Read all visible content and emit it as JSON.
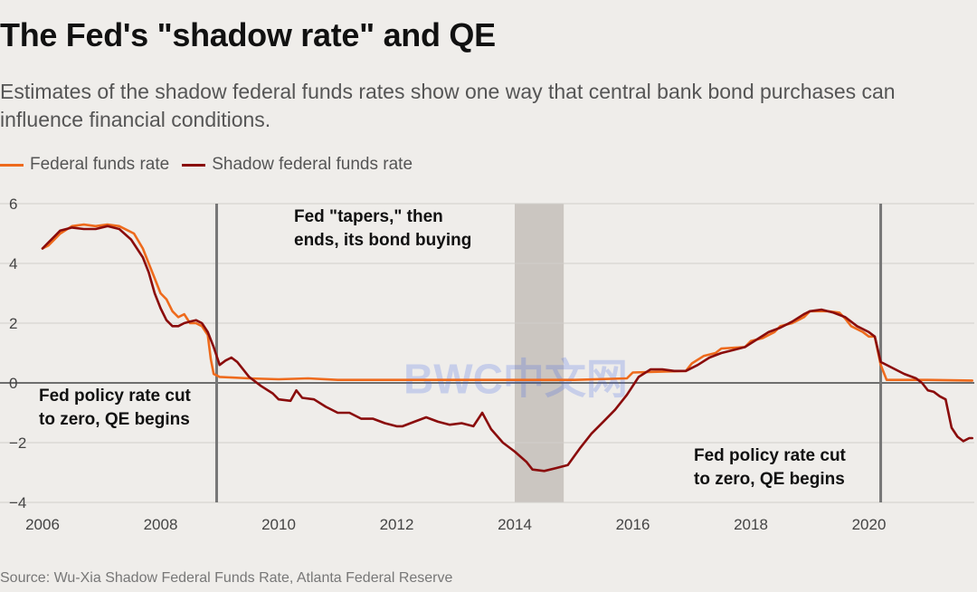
{
  "title": "The Fed's \"shadow rate\" and QE",
  "subtitle": "Estimates of the shadow federal funds rates show one way that central bank bond purchases can influence financial conditions.",
  "source": "Source: Wu-Xia Shadow Federal Funds Rate, Atlanta Federal Reserve",
  "watermark": "BWC中文网",
  "chart_data": {
    "type": "line",
    "title": "The Fed's \"shadow rate\" and QE",
    "xlabel": "",
    "ylabel": "",
    "xlim": [
      2006,
      2021.8
    ],
    "ylim": [
      -4,
      6
    ],
    "x_ticks": [
      2006,
      2008,
      2010,
      2012,
      2014,
      2016,
      2018,
      2020
    ],
    "y_ticks": [
      -4,
      -2,
      0,
      2,
      4,
      6
    ],
    "y_tick_labels": [
      "−4",
      "−2",
      "0",
      "2",
      "4",
      "6"
    ],
    "grid": "horizontal",
    "legend_position": "top-left",
    "colors": {
      "funds": "#ee6a1c",
      "shadow": "#8a0c0c",
      "vline": "#777777",
      "shade": "#cbc6c1",
      "watermark": "#3f63e6"
    },
    "vertical_lines": [
      2008.95,
      2020.2
    ],
    "shaded_region": [
      2014.0,
      2014.83
    ],
    "annotations": [
      {
        "lines": [
          "Fed policy rate cut",
          "to zero, QE begins"
        ],
        "x": 2006,
        "y": -0.6
      },
      {
        "lines": [
          "Fed \"tapers,\" then",
          "ends, its bond buying"
        ],
        "x": 2008.95,
        "y": 5.4
      },
      {
        "lines": [
          "Fed policy rate cut",
          "to zero, QE begins"
        ],
        "x": 2019.05,
        "y": -2.6
      }
    ],
    "series": [
      {
        "name": "Federal funds rate",
        "color": "#ee6a1c",
        "x": [
          2006.0,
          2006.1,
          2006.2,
          2006.3,
          2006.5,
          2006.7,
          2006.9,
          2007.1,
          2007.3,
          2007.55,
          2007.7,
          2007.8,
          2007.9,
          2008.0,
          2008.1,
          2008.2,
          2008.3,
          2008.4,
          2008.5,
          2008.6,
          2008.7,
          2008.8,
          2008.85,
          2008.9,
          2009.0,
          2009.5,
          2010.0,
          2010.5,
          2011.0,
          2011.5,
          2012.0,
          2013.0,
          2014.0,
          2015.0,
          2015.9,
          2016.0,
          2016.9,
          2017.0,
          2017.2,
          2017.4,
          2017.5,
          2017.9,
          2018.0,
          2018.2,
          2018.4,
          2018.5,
          2018.7,
          2018.9,
          2019.0,
          2019.3,
          2019.5,
          2019.6,
          2019.7,
          2019.9,
          2020.0,
          2020.1,
          2020.2,
          2020.3,
          2021.0,
          2021.75
        ],
        "y": [
          4.5,
          4.6,
          4.8,
          5.0,
          5.25,
          5.3,
          5.25,
          5.3,
          5.25,
          5.0,
          4.5,
          4.0,
          3.5,
          3.0,
          2.8,
          2.4,
          2.2,
          2.3,
          2.0,
          2.0,
          1.9,
          1.6,
          0.8,
          0.3,
          0.2,
          0.15,
          0.12,
          0.15,
          0.1,
          0.1,
          0.1,
          0.1,
          0.1,
          0.1,
          0.15,
          0.35,
          0.4,
          0.65,
          0.9,
          1.0,
          1.15,
          1.2,
          1.4,
          1.5,
          1.7,
          1.9,
          2.0,
          2.2,
          2.4,
          2.4,
          2.35,
          2.15,
          1.9,
          1.7,
          1.55,
          1.55,
          0.6,
          0.1,
          0.1,
          0.08
        ]
      },
      {
        "name": "Shadow federal funds rate",
        "color": "#8a0c0c",
        "x": [
          2006.0,
          2006.1,
          2006.2,
          2006.3,
          2006.5,
          2006.7,
          2006.9,
          2007.1,
          2007.3,
          2007.5,
          2007.6,
          2007.7,
          2007.8,
          2007.9,
          2008.0,
          2008.1,
          2008.2,
          2008.3,
          2008.4,
          2008.5,
          2008.6,
          2008.7,
          2008.8,
          2008.9,
          2009.0,
          2009.1,
          2009.2,
          2009.3,
          2009.5,
          2009.7,
          2009.9,
          2010.0,
          2010.2,
          2010.3,
          2010.4,
          2010.6,
          2010.8,
          2011.0,
          2011.2,
          2011.4,
          2011.6,
          2011.8,
          2012.0,
          2012.1,
          2012.3,
          2012.5,
          2012.7,
          2012.9,
          2013.1,
          2013.3,
          2013.45,
          2013.6,
          2013.8,
          2014.0,
          2014.2,
          2014.3,
          2014.5,
          2014.7,
          2014.9,
          2015.1,
          2015.3,
          2015.5,
          2015.7,
          2015.9,
          2016.1,
          2016.3,
          2016.5,
          2016.7,
          2016.9,
          2017.1,
          2017.3,
          2017.5,
          2017.7,
          2017.9,
          2018.1,
          2018.3,
          2018.5,
          2018.7,
          2018.9,
          2019.0,
          2019.2,
          2019.4,
          2019.6,
          2019.8,
          2020.0,
          2020.1,
          2020.2,
          2020.4,
          2020.6,
          2020.8,
          2020.9,
          2021.0,
          2021.1,
          2021.2,
          2021.3,
          2021.4,
          2021.5,
          2021.6,
          2021.7,
          2021.75
        ],
        "y": [
          4.5,
          4.7,
          4.9,
          5.1,
          5.2,
          5.15,
          5.15,
          5.25,
          5.15,
          4.8,
          4.5,
          4.2,
          3.7,
          3.0,
          2.5,
          2.1,
          1.9,
          1.9,
          2.0,
          2.05,
          2.1,
          2.0,
          1.7,
          1.2,
          0.6,
          0.75,
          0.85,
          0.7,
          0.2,
          -0.1,
          -0.35,
          -0.55,
          -0.6,
          -0.25,
          -0.5,
          -0.55,
          -0.8,
          -1.0,
          -1.0,
          -1.2,
          -1.2,
          -1.35,
          -1.45,
          -1.45,
          -1.3,
          -1.15,
          -1.3,
          -1.4,
          -1.35,
          -1.45,
          -1.0,
          -1.55,
          -2.0,
          -2.3,
          -2.65,
          -2.9,
          -2.95,
          -2.85,
          -2.75,
          -2.2,
          -1.7,
          -1.3,
          -0.9,
          -0.4,
          0.2,
          0.45,
          0.45,
          0.4,
          0.4,
          0.6,
          0.85,
          1.0,
          1.1,
          1.2,
          1.45,
          1.7,
          1.85,
          2.05,
          2.3,
          2.4,
          2.45,
          2.35,
          2.2,
          1.9,
          1.7,
          1.55,
          0.7,
          0.5,
          0.3,
          0.15,
          0.0,
          -0.25,
          -0.3,
          -0.45,
          -0.55,
          -1.5,
          -1.8,
          -1.95,
          -1.85,
          -1.85
        ]
      }
    ]
  }
}
